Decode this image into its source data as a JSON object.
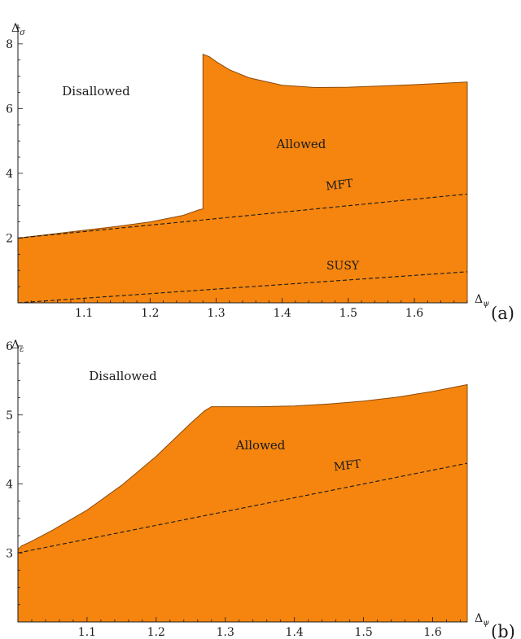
{
  "chart_data": [
    {
      "type": "area",
      "panel_label": "(a)",
      "xlabel": "Δψ",
      "ylabel": "Δσ",
      "xlim": [
        1.0,
        1.68
      ],
      "ylim": [
        0.0,
        8.6
      ],
      "x_ticks": [
        "1.1",
        "1.2",
        "1.3",
        "1.4",
        "1.5",
        "1.6"
      ],
      "y_ticks": [
        "2",
        "4",
        "6",
        "8"
      ],
      "fill_color": "#f5850f",
      "region_labels": {
        "allowed": "Allowed",
        "disallowed": "Disallowed"
      },
      "boundary": {
        "name": "",
        "x": [
          1.0,
          1.05,
          1.1,
          1.15,
          1.2,
          1.25,
          1.275,
          1.28,
          1.28,
          1.29,
          1.3,
          1.32,
          1.35,
          1.4,
          1.45,
          1.5,
          1.55,
          1.6,
          1.65,
          1.68
        ],
        "y": [
          2.0,
          2.12,
          2.24,
          2.36,
          2.5,
          2.7,
          2.88,
          2.9,
          7.68,
          7.6,
          7.45,
          7.2,
          6.95,
          6.72,
          6.65,
          6.66,
          6.7,
          6.74,
          6.79,
          6.82
        ]
      },
      "series": [
        {
          "name": "MFT",
          "style": "dashed",
          "x": [
            1.0,
            1.68
          ],
          "y": [
            2.0,
            3.36
          ]
        },
        {
          "name": "SUSY",
          "style": "dashed",
          "x": [
            1.0,
            1.68
          ],
          "y": [
            0.0,
            0.96
          ]
        }
      ]
    },
    {
      "type": "area",
      "panel_label": "(b)",
      "xlabel": "Δψ",
      "ylabel": "Δε",
      "xlim": [
        1.0,
        1.65
      ],
      "ylim": [
        2.0,
        6.0
      ],
      "x_ticks": [
        "1.1",
        "1.2",
        "1.3",
        "1.4",
        "1.5",
        "1.6"
      ],
      "y_ticks": [
        "3",
        "4",
        "5",
        "6"
      ],
      "fill_color": "#f5850f",
      "region_labels": {
        "allowed": "Allowed",
        "disallowed": "Disallowed"
      },
      "boundary": {
        "name": "",
        "x": [
          1.0,
          1.005,
          1.02,
          1.05,
          1.1,
          1.15,
          1.2,
          1.25,
          1.27,
          1.28,
          1.3,
          1.35,
          1.4,
          1.45,
          1.5,
          1.55,
          1.6,
          1.65
        ],
        "y": [
          3.05,
          3.1,
          3.17,
          3.33,
          3.62,
          3.98,
          4.4,
          4.88,
          5.06,
          5.12,
          5.12,
          5.12,
          5.13,
          5.16,
          5.2,
          5.26,
          5.34,
          5.44
        ]
      },
      "series": [
        {
          "name": "MFT",
          "style": "dashed",
          "x": [
            1.0,
            1.65
          ],
          "y": [
            3.0,
            4.3
          ]
        }
      ]
    }
  ]
}
